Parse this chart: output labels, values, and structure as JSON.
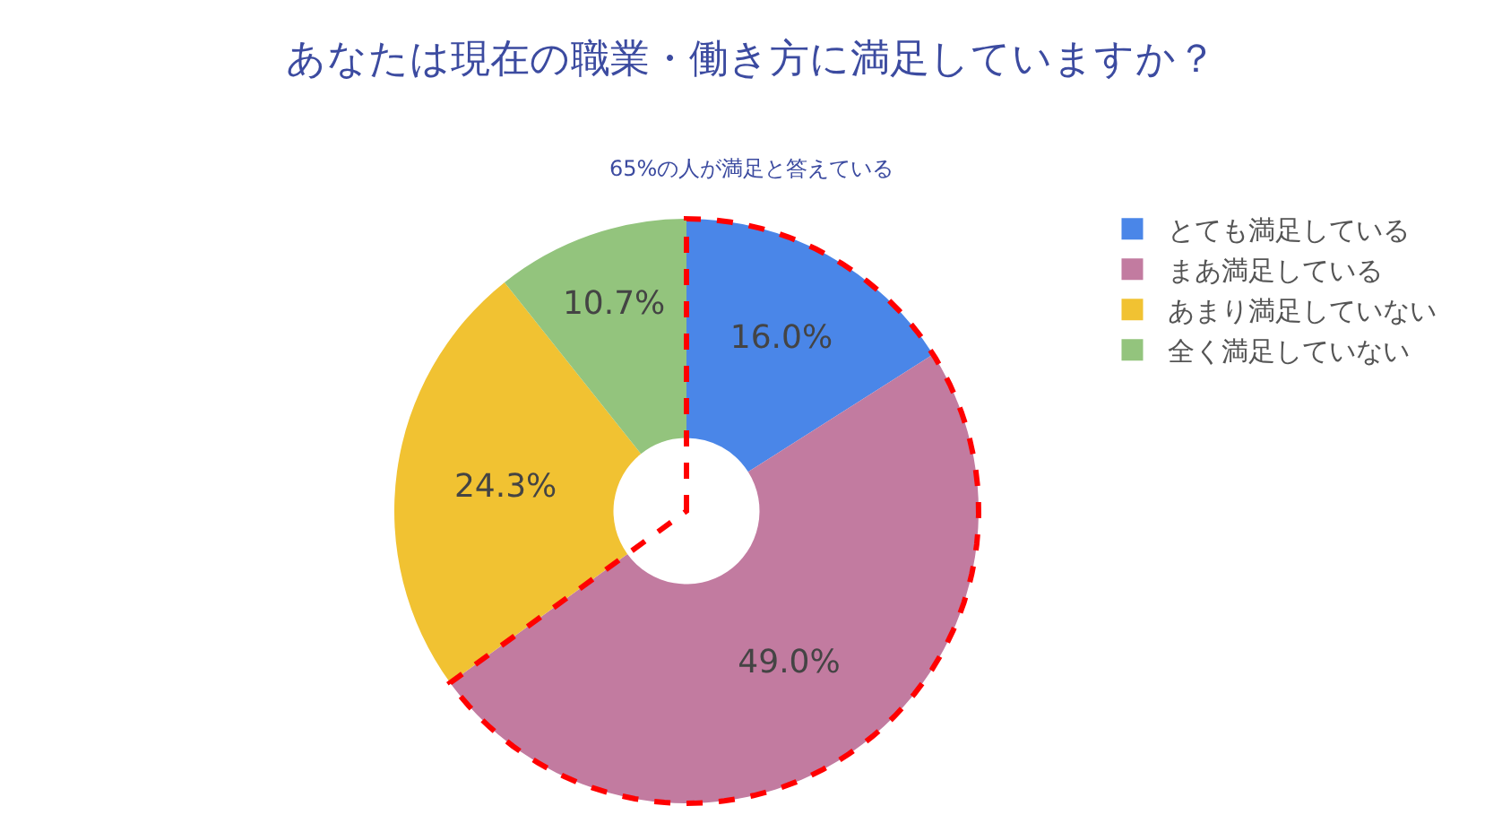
{
  "chart_data": {
    "type": "donut",
    "title": "あなたは現在の職業・働き方に満足していますか？",
    "subtitle": "65%の人が満足と答えている",
    "categories": [
      "とても満足している",
      "まあ満足している",
      "あまり満足していない",
      "全く満足していない"
    ],
    "values": [
      16.0,
      49.0,
      24.3,
      10.7
    ],
    "colors": [
      "#4a86e8",
      "#c27ba0",
      "#f1c232",
      "#93c47d"
    ],
    "value_labels": [
      "16.0%",
      "49.0%",
      "24.3%",
      "10.7%"
    ],
    "legend": "top right"
  }
}
